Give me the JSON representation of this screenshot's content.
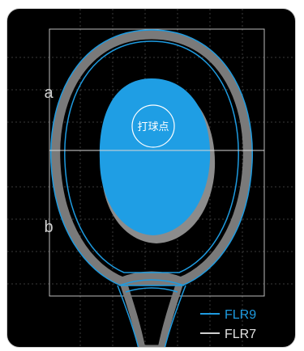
{
  "diagram": {
    "zone_labels": {
      "a": "a",
      "b": "b"
    },
    "sweet_spot_label": "打球点",
    "legend": [
      {
        "name": "FLR9",
        "color": "#1e9be0"
      },
      {
        "name": "FLR7",
        "color": "#cfcfcf"
      }
    ],
    "colors": {
      "background": "#000000",
      "sweet_spot": "#1f9ee4",
      "sweet_spot_shadow": "#8c8c8c",
      "frame_gray": "#7a7a7a",
      "frame_blue": "#1e9be0",
      "guide_lines": "#bdbdbd",
      "grid": "#3a3a3a"
    }
  }
}
